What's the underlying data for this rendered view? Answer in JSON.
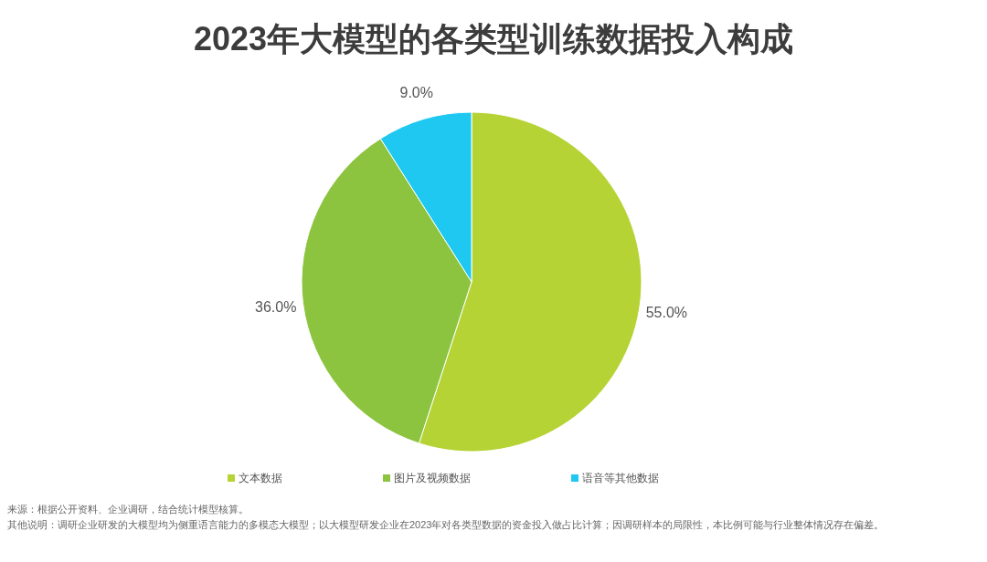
{
  "chart_data": {
    "type": "pie",
    "title": "2023年大模型的各类型训练数据投入构成",
    "categories": [
      "文本数据",
      "图片及视频数据",
      "语音等其他数据"
    ],
    "values": [
      55.0,
      36.0,
      9.0
    ],
    "colors": [
      "#b5d334",
      "#8cc43f",
      "#1ec8f0"
    ],
    "value_labels": [
      "55.0%",
      "36.0%",
      "9.0%"
    ],
    "legend": "bottom",
    "annotations": [
      "来源：根据公开资料、企业调研，结合统计模型核算。",
      "其他说明：调研企业研发的大模型均为侧重语言能力的多模态大模型；以大模型研发企业在2023年对各类型数据的资金投入做占比计算；因调研样本的局限性，本比例可能与行业整体情况存在偏差。"
    ]
  }
}
